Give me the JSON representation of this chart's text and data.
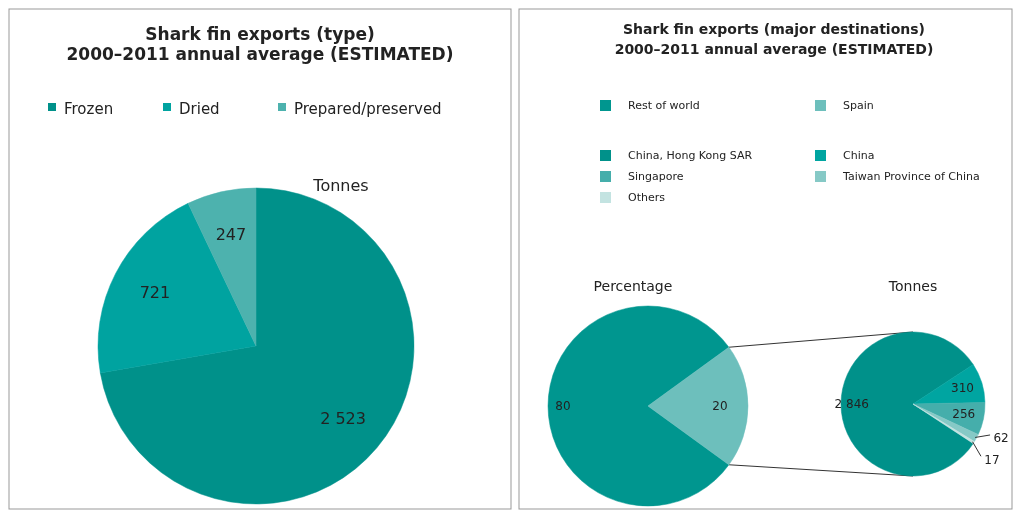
{
  "chart_data": [
    {
      "type": "pie",
      "title": "Shark fin exports (type)\n2000–2011 annual average (ESTIMATED)",
      "subtitle": "Tonnes",
      "categories": [
        "Frozen",
        "Dried",
        "Prepared/preserved"
      ],
      "values": [
        2523,
        721,
        247
      ],
      "value_labels": [
        "2 523",
        "721",
        "247"
      ],
      "colors": [
        "#00918a",
        "#00a3a0",
        "#4db2ae"
      ],
      "legend": "top"
    },
    {
      "type": "pie",
      "title": "Shark fin exports (major destinations)\n2000–2011 annual average (ESTIMATED)",
      "subtitle": "Percentage",
      "categories": [
        "Rest of world",
        "Spain"
      ],
      "values": [
        80,
        20
      ],
      "data_labels": true,
      "colors": [
        "#00968f",
        "#6dbfbc"
      ],
      "legend": "top"
    },
    {
      "type": "pie",
      "subtitle": "Tonnes",
      "categories": [
        "China, Hong Kong SAR",
        "China",
        "Singapore",
        "Taiwan Province of China",
        "Others"
      ],
      "values": [
        2846,
        310,
        256,
        62,
        17
      ],
      "value_labels": [
        "2 846",
        "310",
        "256",
        "62",
        "17"
      ],
      "colors": [
        "#00918a",
        "#00a5a1",
        "#45aeab",
        "#86c9c6",
        "#c3e3e1"
      ],
      "legend": "top"
    }
  ]
}
